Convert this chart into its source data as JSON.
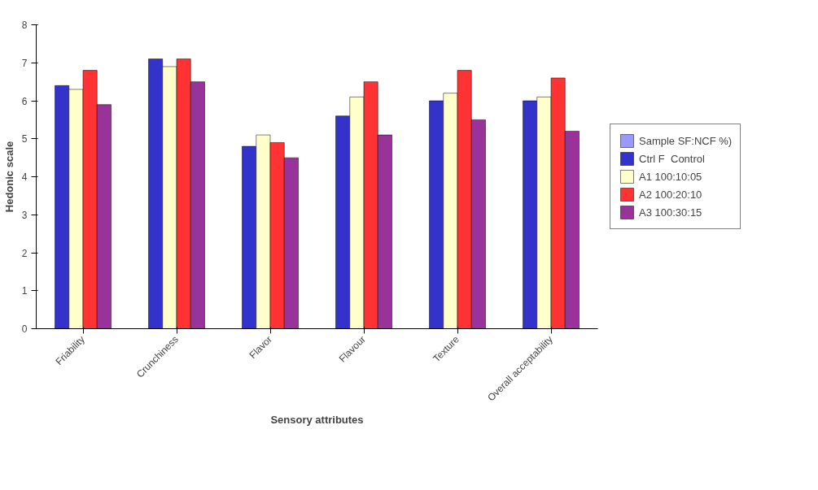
{
  "chart_data": {
    "type": "bar",
    "xlabel": "Sensory attributes",
    "ylabel": "Hedonic scale",
    "categories": [
      "Friability",
      "Crunchiness",
      "Flavor",
      "Flavour",
      "Texture",
      "Overall acceptability"
    ],
    "series": [
      {
        "name": "Sample SF:NCF %)",
        "color": "#9999ff",
        "values": [
          null,
          null,
          null,
          null,
          null,
          null
        ]
      },
      {
        "name": "Ctrl F  Control",
        "color": "#3333cc",
        "values": [
          6.4,
          7.1,
          4.8,
          5.6,
          6.0,
          6.0
        ]
      },
      {
        "name": "A1 100:10:05",
        "color": "#ffffcc",
        "values": [
          6.3,
          6.9,
          5.1,
          6.1,
          6.2,
          6.1
        ]
      },
      {
        "name": "A2 100:20:10",
        "color": "#ff3333",
        "values": [
          6.8,
          7.1,
          4.9,
          6.5,
          6.8,
          6.6
        ]
      },
      {
        "name": "A3 100:30:15",
        "color": "#993399",
        "values": [
          5.9,
          6.5,
          4.5,
          5.1,
          5.5,
          5.2
        ]
      }
    ],
    "ylim": [
      0,
      8
    ],
    "yticks": [
      0,
      1,
      2,
      3,
      4,
      5,
      6,
      7,
      8
    ],
    "grid": false,
    "legend": "right"
  }
}
